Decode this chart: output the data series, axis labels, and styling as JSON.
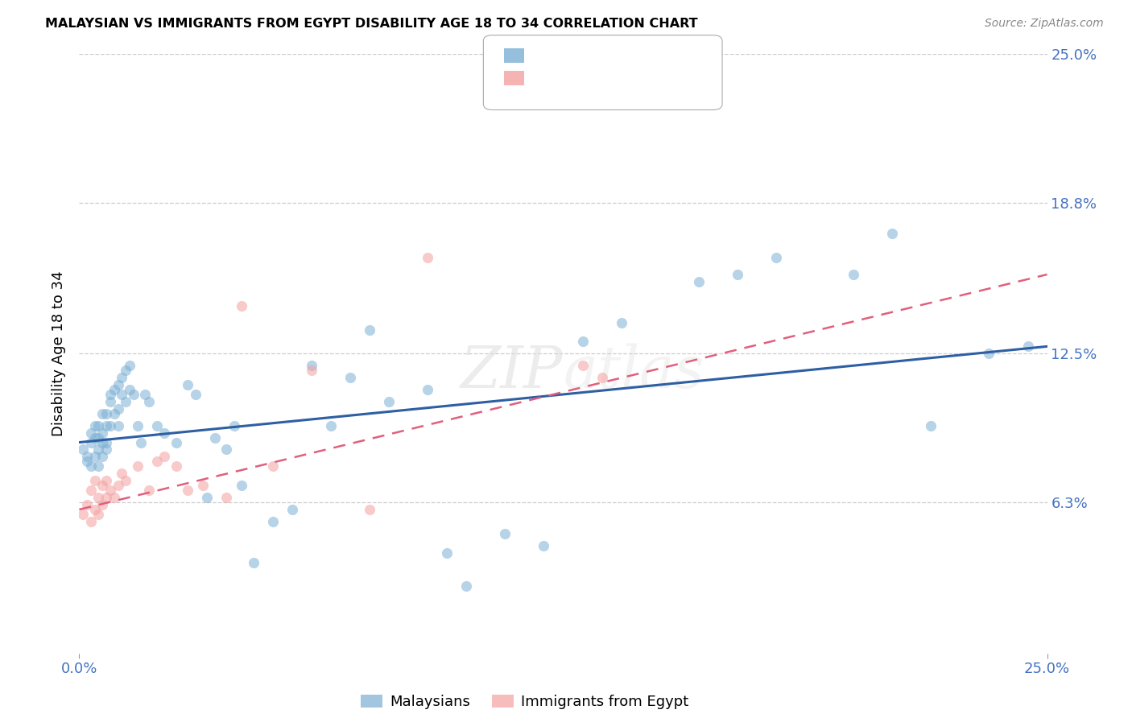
{
  "title": "MALAYSIAN VS IMMIGRANTS FROM EGYPT DISABILITY AGE 18 TO 34 CORRELATION CHART",
  "source": "Source: ZipAtlas.com",
  "ylabel": "Disability Age 18 to 34",
  "xlim": [
    0.0,
    0.25
  ],
  "ylim": [
    0.0,
    0.25
  ],
  "ytick_values": [
    0.063,
    0.125,
    0.188,
    0.25
  ],
  "ytick_labels": [
    "6.3%",
    "12.5%",
    "18.8%",
    "25.0%"
  ],
  "xtick_values": [
    0.0,
    0.25
  ],
  "xtick_labels": [
    "0.0%",
    "25.0%"
  ],
  "color_malaysian": "#7BAFD4",
  "color_egypt": "#F4A0A0",
  "color_line_malaysian": "#2E5FA3",
  "color_line_egypt": "#E0607E",
  "tick_color": "#4472C4",
  "grid_color": "#CCCCCC",
  "background_color": "#ffffff",
  "malaysian_x": [
    0.001,
    0.002,
    0.002,
    0.003,
    0.003,
    0.003,
    0.004,
    0.004,
    0.004,
    0.005,
    0.005,
    0.005,
    0.005,
    0.006,
    0.006,
    0.006,
    0.006,
    0.007,
    0.007,
    0.007,
    0.007,
    0.008,
    0.008,
    0.008,
    0.009,
    0.009,
    0.01,
    0.01,
    0.01,
    0.011,
    0.011,
    0.012,
    0.012,
    0.013,
    0.013,
    0.014,
    0.015,
    0.016,
    0.017,
    0.018,
    0.02,
    0.022,
    0.025,
    0.028,
    0.03,
    0.033,
    0.035,
    0.038,
    0.04,
    0.042,
    0.045,
    0.05,
    0.055,
    0.06,
    0.065,
    0.07,
    0.075,
    0.08,
    0.09,
    0.095,
    0.1,
    0.11,
    0.12,
    0.13,
    0.14,
    0.16,
    0.17,
    0.18,
    0.2,
    0.21,
    0.22,
    0.235,
    0.245
  ],
  "malaysian_y": [
    0.085,
    0.08,
    0.082,
    0.088,
    0.092,
    0.078,
    0.09,
    0.095,
    0.082,
    0.085,
    0.09,
    0.095,
    0.078,
    0.088,
    0.092,
    0.082,
    0.1,
    0.095,
    0.088,
    0.1,
    0.085,
    0.105,
    0.095,
    0.108,
    0.1,
    0.11,
    0.095,
    0.102,
    0.112,
    0.108,
    0.115,
    0.105,
    0.118,
    0.11,
    0.12,
    0.108,
    0.095,
    0.088,
    0.108,
    0.105,
    0.095,
    0.092,
    0.088,
    0.112,
    0.108,
    0.065,
    0.09,
    0.085,
    0.095,
    0.07,
    0.038,
    0.055,
    0.06,
    0.12,
    0.095,
    0.115,
    0.135,
    0.105,
    0.11,
    0.042,
    0.028,
    0.05,
    0.045,
    0.13,
    0.138,
    0.155,
    0.158,
    0.165,
    0.158,
    0.175,
    0.095,
    0.125,
    0.128
  ],
  "egypt_x": [
    0.001,
    0.002,
    0.003,
    0.003,
    0.004,
    0.004,
    0.005,
    0.005,
    0.006,
    0.006,
    0.007,
    0.007,
    0.008,
    0.009,
    0.01,
    0.011,
    0.012,
    0.015,
    0.018,
    0.02,
    0.022,
    0.025,
    0.028,
    0.032,
    0.038,
    0.042,
    0.05,
    0.06,
    0.075,
    0.09,
    0.13,
    0.135
  ],
  "egypt_y": [
    0.058,
    0.062,
    0.055,
    0.068,
    0.06,
    0.072,
    0.058,
    0.065,
    0.062,
    0.07,
    0.065,
    0.072,
    0.068,
    0.065,
    0.07,
    0.075,
    0.072,
    0.078,
    0.068,
    0.08,
    0.082,
    0.078,
    0.068,
    0.07,
    0.065,
    0.145,
    0.078,
    0.118,
    0.06,
    0.165,
    0.12,
    0.115
  ],
  "line_mal_x0": 0.0,
  "line_mal_y0": 0.088,
  "line_mal_x1": 0.25,
  "line_mal_y1": 0.128,
  "line_egy_x0": 0.0,
  "line_egy_y0": 0.06,
  "line_egy_x1": 0.25,
  "line_egy_y1": 0.158
}
